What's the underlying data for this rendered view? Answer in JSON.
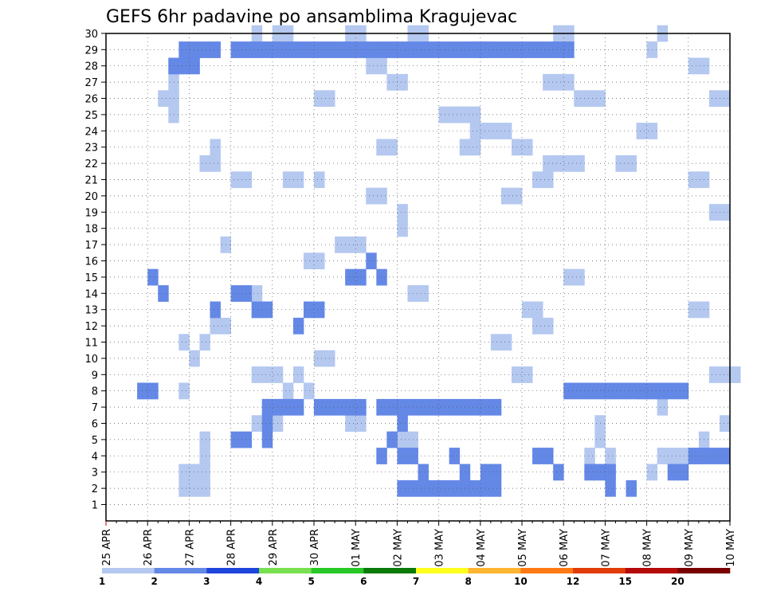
{
  "chart_data": {
    "type": "heatmap",
    "title": "GEFS 6hr padavine po ansamblima Kragujevac",
    "xlabel": "",
    "ylabel": "",
    "x_tick_labels": [
      "25 APR",
      "26 APR",
      "27 APR",
      "28 APR",
      "29 APR",
      "30 APR",
      "01 MAY",
      "02 MAY",
      "03 MAY",
      "04 MAY",
      "05 MAY",
      "06 MAY",
      "07 MAY",
      "08 MAY",
      "09 MAY",
      "10 MAY"
    ],
    "y_tick_labels": [
      "1",
      "2",
      "3",
      "4",
      "5",
      "6",
      "7",
      "8",
      "9",
      "10",
      "11",
      "12",
      "13",
      "14",
      "15",
      "16",
      "17",
      "18",
      "19",
      "20",
      "21",
      "22",
      "23",
      "24",
      "25",
      "26",
      "27",
      "28",
      "29",
      "30"
    ],
    "x_range_steps": [
      0,
      60
    ],
    "y_range_members": [
      1,
      30
    ],
    "grid": true,
    "colorbar": {
      "labels": [
        "1",
        "2",
        "3",
        "4",
        "5",
        "6",
        "7",
        "8",
        "10",
        "12",
        "15",
        "20"
      ],
      "colors": [
        "#b4c8f0",
        "#6488e6",
        "#1e46dc",
        "#78e050",
        "#28c828",
        "#0a7a0a",
        "#ffff1e",
        "#ffb432",
        "#ff7a14",
        "#e13c0a",
        "#b40a0a",
        "#780000"
      ]
    },
    "cells": [
      [
        7,
        2,
        1
      ],
      [
        8,
        2,
        1
      ],
      [
        9,
        2,
        1
      ],
      [
        7,
        3,
        1
      ],
      [
        8,
        3,
        1
      ],
      [
        9,
        3,
        1
      ],
      [
        9,
        4,
        1
      ],
      [
        9,
        5,
        1
      ],
      [
        14,
        6,
        1
      ],
      [
        16,
        6,
        1
      ],
      [
        23,
        6,
        1
      ],
      [
        24,
        6,
        1
      ],
      [
        15,
        7,
        1
      ],
      [
        16,
        7,
        1
      ],
      [
        3,
        8,
        1
      ],
      [
        4,
        8,
        1
      ],
      [
        7,
        8,
        1
      ],
      [
        17,
        8,
        1
      ],
      [
        19,
        8,
        1
      ],
      [
        18,
        9,
        1
      ],
      [
        14,
        9,
        1
      ],
      [
        15,
        9,
        1
      ],
      [
        16,
        9,
        1
      ],
      [
        8,
        10,
        1
      ],
      [
        7,
        11,
        1
      ],
      [
        9,
        11,
        1
      ],
      [
        10,
        12,
        1
      ],
      [
        11,
        12,
        1
      ],
      [
        14,
        13,
        1
      ],
      [
        14,
        14,
        1
      ],
      [
        19,
        16,
        1
      ],
      [
        20,
        16,
        1
      ],
      [
        11,
        17,
        1
      ],
      [
        22,
        17,
        1
      ],
      [
        23,
        17,
        1
      ],
      [
        24,
        17,
        1
      ],
      [
        28,
        18,
        1
      ],
      [
        28,
        19,
        1
      ],
      [
        35,
        24,
        1
      ],
      [
        36,
        24,
        1
      ],
      [
        38,
        20,
        1
      ],
      [
        39,
        20,
        1
      ],
      [
        41,
        21,
        1
      ],
      [
        42,
        21,
        1
      ],
      [
        42,
        22,
        1
      ],
      [
        43,
        22,
        1
      ],
      [
        44,
        22,
        1
      ],
      [
        45,
        22,
        1
      ],
      [
        51,
        24,
        1
      ],
      [
        52,
        24,
        1
      ],
      [
        58,
        19,
        1
      ],
      [
        59,
        19,
        1
      ],
      [
        49,
        22,
        1
      ],
      [
        50,
        22,
        1
      ],
      [
        25,
        28,
        1
      ],
      [
        26,
        28,
        1
      ],
      [
        32,
        25,
        1
      ],
      [
        33,
        25,
        1
      ],
      [
        34,
        25,
        1
      ],
      [
        35,
        25,
        1
      ],
      [
        44,
        15,
        1
      ],
      [
        45,
        15,
        1
      ],
      [
        29,
        14,
        1
      ],
      [
        30,
        14,
        1
      ],
      [
        40,
        13,
        1
      ],
      [
        41,
        13,
        1
      ],
      [
        37,
        11,
        1
      ],
      [
        38,
        11,
        1
      ],
      [
        41,
        12,
        1
      ],
      [
        42,
        12,
        1
      ],
      [
        56,
        13,
        1
      ],
      [
        57,
        13,
        1
      ],
      [
        51,
        8,
        1
      ],
      [
        52,
        8,
        1
      ],
      [
        53,
        7,
        1
      ],
      [
        48,
        4,
        1
      ],
      [
        48,
        3,
        1
      ],
      [
        47,
        5,
        1
      ],
      [
        47,
        6,
        1
      ],
      [
        46,
        4,
        1
      ],
      [
        39,
        9,
        1
      ],
      [
        40,
        9,
        1
      ],
      [
        20,
        10,
        1
      ],
      [
        21,
        10,
        1
      ],
      [
        52,
        3,
        1
      ],
      [
        53,
        4,
        1
      ],
      [
        54,
        4,
        1
      ],
      [
        55,
        4,
        1
      ],
      [
        56,
        4,
        1
      ],
      [
        57,
        5,
        1
      ],
      [
        59,
        6,
        1
      ],
      [
        27,
        5,
        1
      ],
      [
        28,
        5,
        1
      ],
      [
        29,
        5,
        1
      ],
      [
        58,
        9,
        1
      ],
      [
        59,
        9,
        1
      ],
      [
        60,
        9,
        1
      ],
      [
        35,
        29,
        1
      ],
      [
        36,
        29,
        1
      ],
      [
        6,
        27,
        1
      ],
      [
        6,
        28,
        1
      ],
      [
        6,
        26,
        1
      ],
      [
        5,
        26,
        1
      ],
      [
        6,
        25,
        1
      ],
      [
        14,
        30,
        1
      ],
      [
        14,
        29,
        1
      ],
      [
        23,
        30,
        1
      ],
      [
        24,
        30,
        1
      ],
      [
        29,
        30,
        1
      ],
      [
        30,
        30,
        1
      ],
      [
        16,
        30,
        1
      ],
      [
        17,
        30,
        1
      ],
      [
        20,
        26,
        1
      ],
      [
        21,
        26,
        1
      ],
      [
        27,
        27,
        1
      ],
      [
        28,
        27,
        1
      ],
      [
        42,
        27,
        1
      ],
      [
        43,
        27,
        1
      ],
      [
        44,
        27,
        1
      ],
      [
        45,
        26,
        1
      ],
      [
        46,
        26,
        1
      ],
      [
        47,
        26,
        1
      ],
      [
        37,
        24,
        1
      ],
      [
        38,
        24,
        1
      ],
      [
        39,
        23,
        1
      ],
      [
        40,
        23,
        1
      ],
      [
        25,
        20,
        1
      ],
      [
        26,
        20,
        1
      ],
      [
        17,
        21,
        1
      ],
      [
        18,
        21,
        1
      ],
      [
        12,
        21,
        1
      ],
      [
        13,
        21,
        1
      ],
      [
        9,
        22,
        1
      ],
      [
        10,
        22,
        1
      ],
      [
        10,
        23,
        1
      ],
      [
        20,
        21,
        1
      ],
      [
        56,
        21,
        1
      ],
      [
        57,
        21,
        1
      ],
      [
        45,
        22,
        1
      ],
      [
        26,
        23,
        1
      ],
      [
        27,
        23,
        1
      ],
      [
        34,
        23,
        1
      ],
      [
        35,
        23,
        1
      ],
      [
        43,
        30,
        1
      ],
      [
        44,
        30,
        1
      ],
      [
        52,
        29,
        1
      ],
      [
        53,
        30,
        1
      ],
      [
        56,
        28,
        1
      ],
      [
        57,
        28,
        1
      ],
      [
        58,
        26,
        1
      ],
      [
        59,
        26,
        1
      ],
      [
        3,
        8,
        2
      ],
      [
        4,
        8,
        2
      ],
      [
        5,
        14,
        2
      ],
      [
        4,
        15,
        2
      ],
      [
        10,
        13,
        2
      ],
      [
        12,
        14,
        2
      ],
      [
        13,
        14,
        2
      ],
      [
        14,
        13,
        2
      ],
      [
        15,
        13,
        2
      ],
      [
        18,
        12,
        2
      ],
      [
        19,
        13,
        2
      ],
      [
        20,
        13,
        2
      ],
      [
        23,
        15,
        2
      ],
      [
        24,
        15,
        2
      ],
      [
        25,
        16,
        2
      ],
      [
        26,
        15,
        2
      ],
      [
        30,
        3,
        2
      ],
      [
        27,
        5,
        2
      ],
      [
        28,
        6,
        2
      ],
      [
        26,
        4,
        2
      ],
      [
        28,
        4,
        2
      ],
      [
        29,
        4,
        2
      ],
      [
        33,
        4,
        2
      ],
      [
        34,
        3,
        2
      ],
      [
        36,
        3,
        2
      ],
      [
        37,
        3,
        2
      ],
      [
        36,
        2,
        2
      ],
      [
        37,
        2,
        2
      ],
      [
        41,
        4,
        2
      ],
      [
        42,
        4,
        2
      ],
      [
        43,
        3,
        2
      ],
      [
        46,
        3,
        2
      ],
      [
        47,
        3,
        2
      ],
      [
        48,
        3,
        2
      ],
      [
        54,
        3,
        2
      ],
      [
        55,
        3,
        2
      ],
      [
        56,
        4,
        2
      ],
      [
        57,
        4,
        2
      ],
      [
        58,
        4,
        2
      ],
      [
        59,
        4,
        2
      ],
      [
        50,
        2,
        2
      ],
      [
        48,
        2,
        2
      ],
      [
        28,
        2,
        2
      ],
      [
        29,
        2,
        2
      ],
      [
        30,
        2,
        2
      ],
      [
        31,
        2,
        2
      ],
      [
        32,
        2,
        2
      ],
      [
        33,
        2,
        2
      ],
      [
        34,
        2,
        2
      ],
      [
        35,
        2,
        2
      ],
      [
        12,
        5,
        2
      ],
      [
        13,
        5,
        2
      ],
      [
        15,
        5,
        2
      ],
      [
        15,
        6,
        2
      ],
      [
        15,
        7,
        2
      ],
      [
        16,
        7,
        2
      ],
      [
        17,
        7,
        2
      ],
      [
        18,
        7,
        2
      ],
      [
        20,
        7,
        2
      ],
      [
        21,
        7,
        2
      ],
      [
        22,
        7,
        2
      ],
      [
        23,
        7,
        2
      ],
      [
        24,
        7,
        2
      ],
      [
        26,
        7,
        2
      ],
      [
        27,
        7,
        2
      ],
      [
        28,
        7,
        2
      ],
      [
        29,
        7,
        2
      ],
      [
        30,
        7,
        2
      ],
      [
        31,
        7,
        2
      ],
      [
        32,
        7,
        2
      ],
      [
        33,
        7,
        2
      ],
      [
        34,
        7,
        2
      ],
      [
        35,
        7,
        2
      ],
      [
        36,
        7,
        2
      ],
      [
        37,
        7,
        2
      ],
      [
        44,
        8,
        2
      ],
      [
        45,
        8,
        2
      ],
      [
        46,
        8,
        2
      ],
      [
        47,
        8,
        2
      ],
      [
        48,
        8,
        2
      ],
      [
        49,
        8,
        2
      ],
      [
        50,
        8,
        2
      ],
      [
        51,
        8,
        2
      ],
      [
        52,
        8,
        2
      ],
      [
        53,
        8,
        2
      ],
      [
        54,
        8,
        2
      ],
      [
        55,
        8,
        2
      ],
      [
        6,
        28,
        2
      ],
      [
        7,
        28,
        2
      ],
      [
        8,
        28,
        2
      ],
      [
        7,
        29,
        2
      ],
      [
        8,
        29,
        2
      ],
      [
        9,
        29,
        2
      ],
      [
        10,
        29,
        2
      ],
      [
        12,
        29,
        2
      ],
      [
        13,
        29,
        2
      ],
      [
        14,
        29,
        2
      ],
      [
        15,
        29,
        2
      ],
      [
        16,
        29,
        2
      ],
      [
        17,
        29,
        2
      ],
      [
        18,
        29,
        2
      ],
      [
        19,
        29,
        2
      ],
      [
        20,
        29,
        2
      ],
      [
        21,
        29,
        2
      ],
      [
        22,
        29,
        2
      ],
      [
        23,
        29,
        2
      ],
      [
        24,
        29,
        2
      ],
      [
        25,
        29,
        2
      ],
      [
        26,
        29,
        2
      ],
      [
        27,
        29,
        2
      ],
      [
        28,
        29,
        2
      ],
      [
        29,
        29,
        2
      ],
      [
        30,
        29,
        2
      ],
      [
        31,
        29,
        2
      ],
      [
        32,
        29,
        2
      ],
      [
        33,
        29,
        2
      ],
      [
        34,
        29,
        2
      ],
      [
        35,
        29,
        2
      ],
      [
        36,
        29,
        2
      ],
      [
        37,
        29,
        2
      ],
      [
        38,
        29,
        2
      ],
      [
        39,
        29,
        2
      ],
      [
        40,
        29,
        2
      ],
      [
        41,
        29,
        2
      ],
      [
        42,
        29,
        2
      ],
      [
        43,
        29,
        2
      ],
      [
        44,
        29,
        2
      ]
    ]
  }
}
